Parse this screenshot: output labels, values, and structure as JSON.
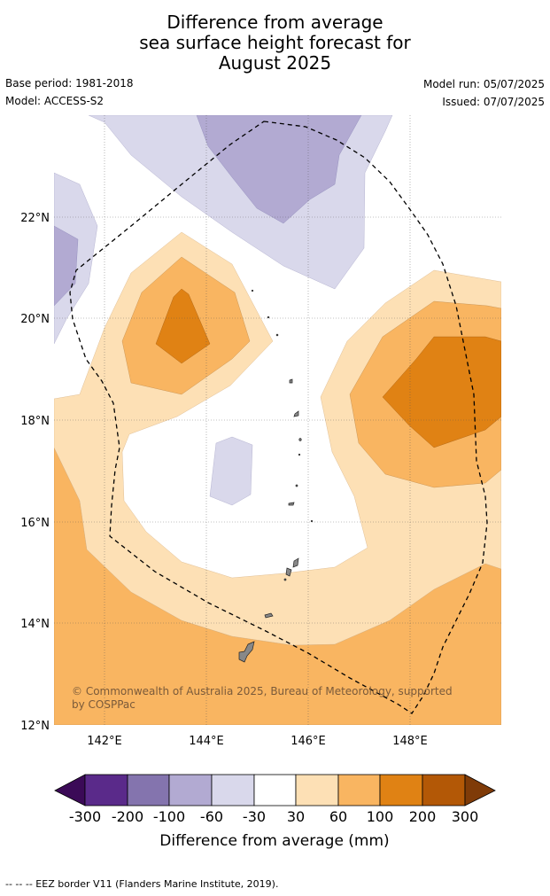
{
  "title": {
    "line1": "Difference from average",
    "line2": "sea surface height forecast for",
    "line3": "August 2025"
  },
  "meta": {
    "base_period": "Base period: 1981-2018",
    "model": "Model: ACCESS-S2",
    "model_run": "Model run: 05/07/2025",
    "issued": "Issued: 07/07/2025"
  },
  "map": {
    "lat_labels": [
      "22°N",
      "20°N",
      "18°N",
      "16°N",
      "14°N",
      "12°N"
    ],
    "lon_labels": [
      "142°E",
      "144°E",
      "146°E",
      "148°E"
    ],
    "copyright_line1": "© Commonwealth of Australia 2025, Bureau of Meteorology, supported",
    "copyright_line2": "by COSPPac",
    "colors": {
      "minus_300_plus": "#3b0a57",
      "minus_200_300": "#5a2a8a",
      "minus_100_200": "#8474ae",
      "minus_60_100": "#b2aad2",
      "minus_30_60": "#d9d8eb",
      "neutral": "#ffffff",
      "plus_30_60": "#fde0b5",
      "plus_60_100": "#f9b561",
      "plus_100_200": "#e08214",
      "plus_200_300": "#b35806",
      "plus_300_plus": "#7f3b08",
      "land": "#888888"
    }
  },
  "colorbar": {
    "ticks": [
      "-300",
      "-200",
      "-100",
      "-60",
      "-30",
      "30",
      "60",
      "100",
      "200",
      "300"
    ],
    "label": "Difference from average (mm)"
  },
  "footer": {
    "legend": "--  --  -- EEZ border V11 (Flanders Marine Institute, 2019)."
  }
}
